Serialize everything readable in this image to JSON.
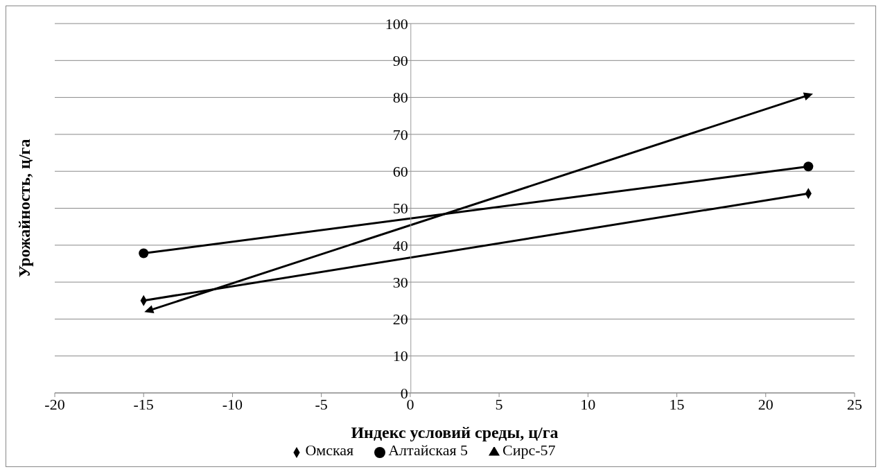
{
  "chart_data": {
    "type": "line",
    "xlabel": "Индекс условий среды, ц/га",
    "ylabel": "Урожайность,  ц/га",
    "xlim": [
      -20,
      25
    ],
    "xticks": [
      -20,
      -15,
      -10,
      -5,
      0,
      5,
      10,
      15,
      20,
      25
    ],
    "ylim": [
      0,
      100
    ],
    "yticks": [
      0,
      10,
      20,
      30,
      40,
      50,
      60,
      70,
      80,
      90,
      100
    ],
    "grid": "y",
    "legend": "bottom",
    "series": [
      {
        "name": "Омская",
        "color": "#000000",
        "marker": "diamond",
        "x": [
          -15,
          22.4
        ],
        "values": [
          25,
          54
        ]
      },
      {
        "name": "Алтайская 5",
        "color": "#000000",
        "marker": "circle",
        "x": [
          -15,
          22.4
        ],
        "values": [
          37.8,
          61.3
        ]
      },
      {
        "name": "Сирс-57",
        "color": "#000000",
        "marker": "triangle",
        "x": [
          -14.7,
          22.4
        ],
        "values": [
          22.3,
          80.6
        ]
      }
    ]
  }
}
